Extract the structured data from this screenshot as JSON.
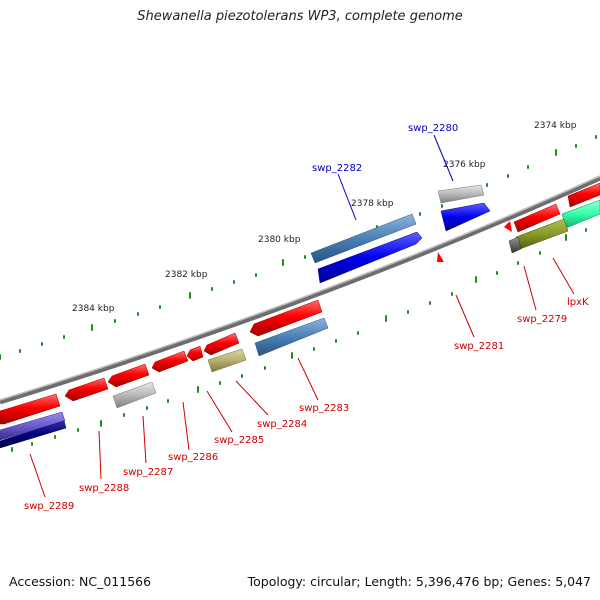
{
  "title": "Shewanella piezotolerans WP3, complete genome",
  "accession_text": "Accession: NC_011566",
  "summary_text": "Topology: circular; Length: 5,396,476 bp; Genes: 5,047",
  "colors": {
    "forward_gene": "#ff0000",
    "reverse_gene": "#ff0000",
    "steel": "#4a7fb5",
    "blue": "#0000ee",
    "grey": "#b8b8b8",
    "olive": "#8a9a2a",
    "khaki": "#b8b070",
    "mint": "#33ffaa",
    "purple": "#6a5acd",
    "navy": "#000080",
    "backbone": "#808080",
    "tick": "#228b22",
    "label_red": "#cc0000",
    "label_blue": "#0000cc"
  },
  "ticks": [
    "2374 kbp",
    "2376 kbp",
    "2378 kbp",
    "2380 kbp",
    "2382 kbp",
    "2384 kbp"
  ],
  "genes": [
    "swp_2280",
    "swp_2282",
    "swp_2281",
    "lpxK",
    "swp_2279",
    "swp_2283",
    "swp_2284",
    "swp_2285",
    "swp_2286",
    "swp_2287",
    "swp_2288",
    "swp_2289"
  ]
}
